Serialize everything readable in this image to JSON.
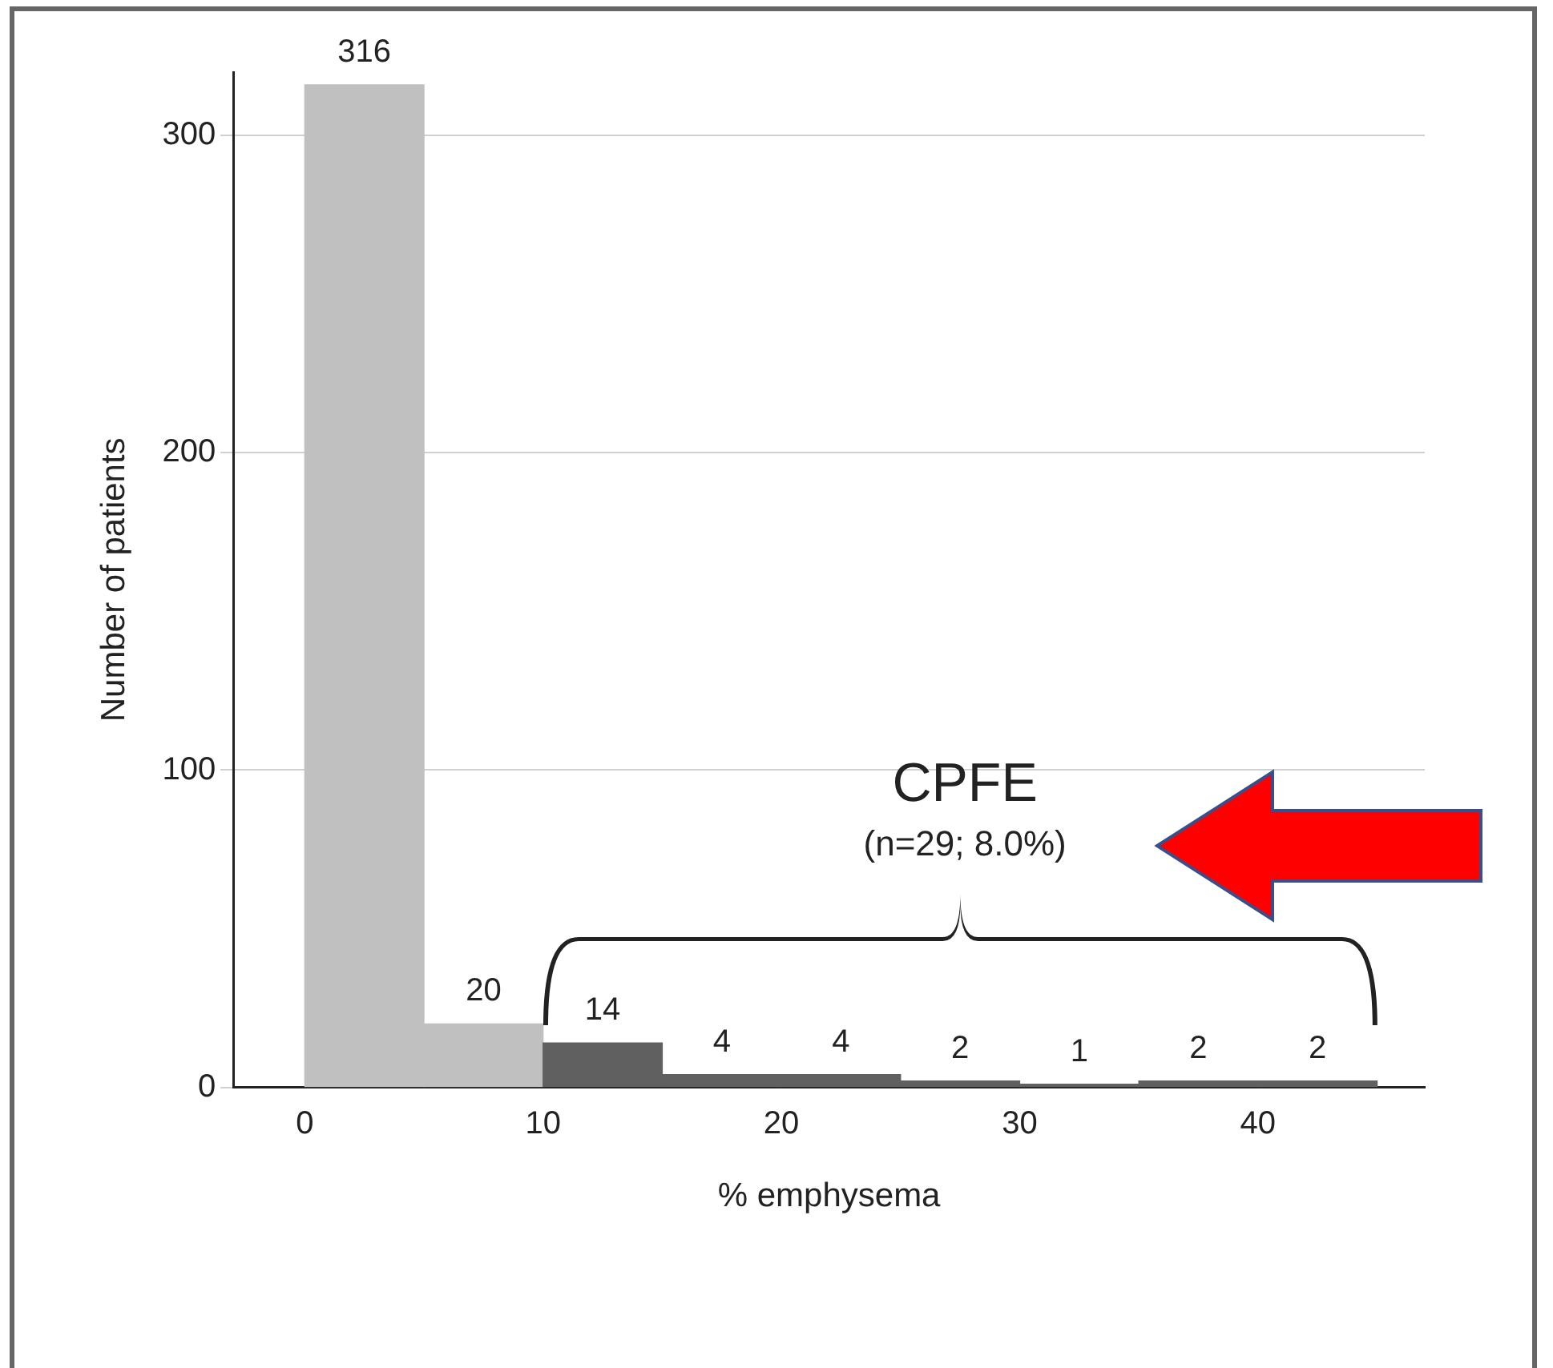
{
  "chart_data": {
    "type": "histogram",
    "xlabel": "% emphysema",
    "ylabel": "Number of patients",
    "bins": [
      0,
      5,
      10,
      15,
      20,
      25,
      30,
      35,
      40,
      45
    ],
    "values": [
      316,
      20,
      14,
      4,
      4,
      2,
      1,
      2,
      2
    ],
    "colors": [
      "#c0c0c0",
      "#c0c0c0",
      "#606060",
      "#606060",
      "#606060",
      "#606060",
      "#606060",
      "#606060",
      "#606060"
    ],
    "xlim": [
      -3,
      47
    ],
    "xticks": [
      0,
      10,
      20,
      30,
      40
    ],
    "ylim": [
      0,
      320
    ],
    "yticks": [
      0,
      100,
      200,
      300
    ],
    "grid": "y",
    "legend": false,
    "data_labels": true,
    "annotations": [
      "CPFE",
      "(n=29; 8.0%)"
    ]
  }
}
